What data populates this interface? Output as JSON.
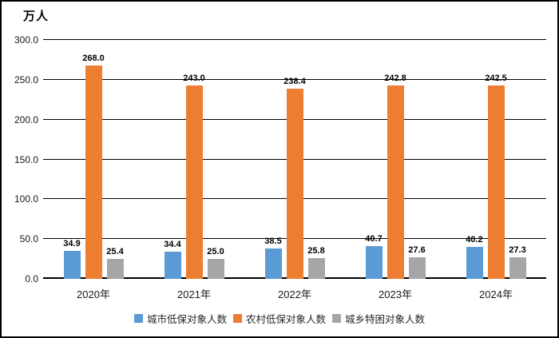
{
  "chart_data": {
    "type": "bar",
    "unit_label": "万人",
    "categories": [
      "2020年",
      "2021年",
      "2022年",
      "2023年",
      "2024年"
    ],
    "series": [
      {
        "name": "城市低保对象人数",
        "color": "#5B9BD5",
        "values": [
          34.9,
          34.4,
          38.5,
          40.7,
          40.2
        ]
      },
      {
        "name": "农村低保对象人数",
        "color": "#ED7D31",
        "values": [
          268.0,
          243.0,
          238.4,
          242.8,
          242.5
        ]
      },
      {
        "name": "城乡特困对象人数",
        "color": "#A6A6A6",
        "values": [
          25.4,
          25.0,
          25.8,
          27.6,
          27.3
        ]
      }
    ],
    "ylim": [
      0,
      300
    ],
    "yticks": [
      0,
      50,
      100,
      150,
      200,
      250,
      300
    ],
    "ytick_labels": [
      "0.0",
      "50.0",
      "100.0",
      "150.0",
      "200.0",
      "250.0",
      "300.0"
    ],
    "grid": true,
    "legend_position": "bottom",
    "value_label_decimals": 1,
    "colors": {
      "grid": "#000000",
      "text": "#000000",
      "frame_border": "#000000",
      "background": "#FFFFFF"
    }
  }
}
